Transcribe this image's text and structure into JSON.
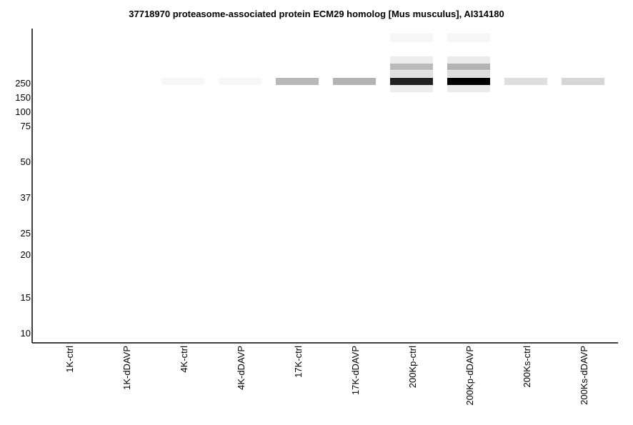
{
  "chart_data": {
    "type": "heatmap",
    "title": "37718970 proteasome-associated protein ECM29 homolog [Mus musculus], AI314180",
    "y_ticks": [
      "250",
      "150",
      "100",
      "75",
      "50",
      "37",
      "25",
      "20",
      "15",
      "10"
    ],
    "lanes": [
      "1K-ctrl",
      "1K-dDAVP",
      "4K-ctrl",
      "4K-dDAVP",
      "17K-ctrl",
      "17K-dDAVP",
      "200Kp-ctrl",
      "200Kp-dDAVP",
      "200Ks-ctrl",
      "200Ks-dDAVP"
    ],
    "bands": [
      {
        "lane": "4K-ctrl",
        "marker": "250",
        "intensity": 0.03
      },
      {
        "lane": "4K-dDAVP",
        "marker": "250",
        "intensity": 0.03
      },
      {
        "lane": "17K-ctrl",
        "marker": "250",
        "intensity": 0.28
      },
      {
        "lane": "17K-dDAVP",
        "marker": "250",
        "intensity": 0.3
      },
      {
        "lane": "200Kp-ctrl",
        "marker": "250",
        "intensity": 0.87
      },
      {
        "lane": "200Kp-ctrl",
        "marker": "above-250",
        "intensity": 0.27
      },
      {
        "lane": "200Kp-dDAVP",
        "marker": "250",
        "intensity": 1.0
      },
      {
        "lane": "200Kp-dDAVP",
        "marker": "above-250",
        "intensity": 0.3
      },
      {
        "lane": "200Ks-ctrl",
        "marker": "250",
        "intensity": 0.13
      },
      {
        "lane": "200Ks-dDAVP",
        "marker": "250",
        "intensity": 0.16
      }
    ]
  }
}
